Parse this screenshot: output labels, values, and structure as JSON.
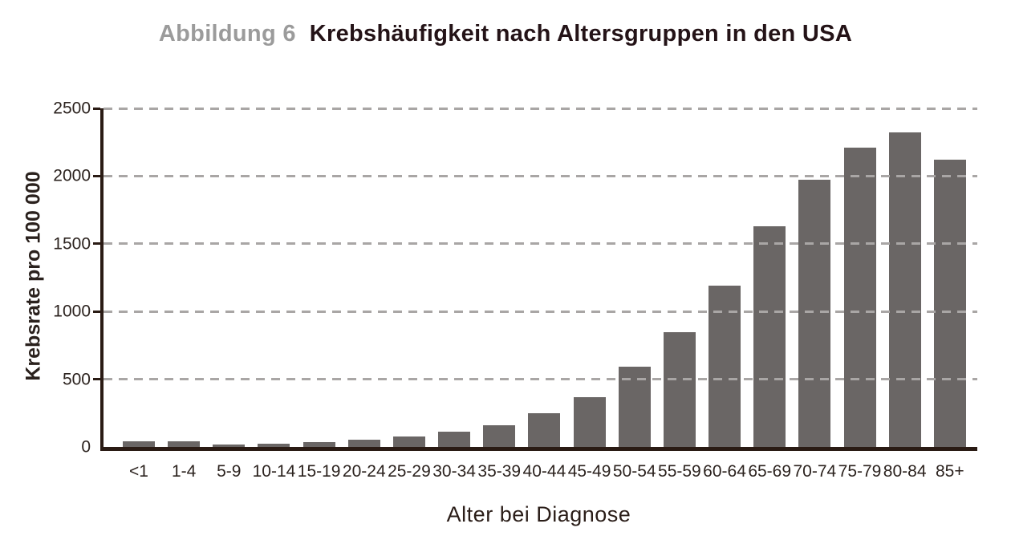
{
  "title": {
    "label": "Abbildung 6",
    "text": "Krebshäufigkeit nach Altersgruppen in den USA"
  },
  "chart_data": {
    "type": "bar",
    "title": "Krebshäufigkeit nach Altersgruppen in den USA",
    "figure_label": "Abbildung 6",
    "xlabel": "Alter bei Diagnose",
    "ylabel": "Krebsrate pro 100 000",
    "categories": [
      "<1",
      "1-4",
      "5-9",
      "10-14",
      "15-19",
      "20-24",
      "25-29",
      "30-34",
      "35-39",
      "40-44",
      "45-49",
      "50-54",
      "55-59",
      "60-64",
      "65-69",
      "70-74",
      "75-79",
      "80-84",
      "85+"
    ],
    "values": [
      40,
      40,
      20,
      25,
      35,
      55,
      75,
      110,
      160,
      250,
      370,
      590,
      850,
      1190,
      1630,
      1970,
      2210,
      2320,
      2120
    ],
    "ylim": [
      0,
      2500
    ],
    "yticks": [
      0,
      500,
      1000,
      1500,
      2000,
      2500
    ],
    "grid": "horizontal-dashed-over-bars",
    "legend": "none",
    "colors": {
      "bar": "#6a6665",
      "axis": "#2a1b14",
      "gridline": "#a9a6a5",
      "tick_text": "#2b221e",
      "title_text": "#241317",
      "figure_label_text": "#9b9b9b"
    }
  }
}
